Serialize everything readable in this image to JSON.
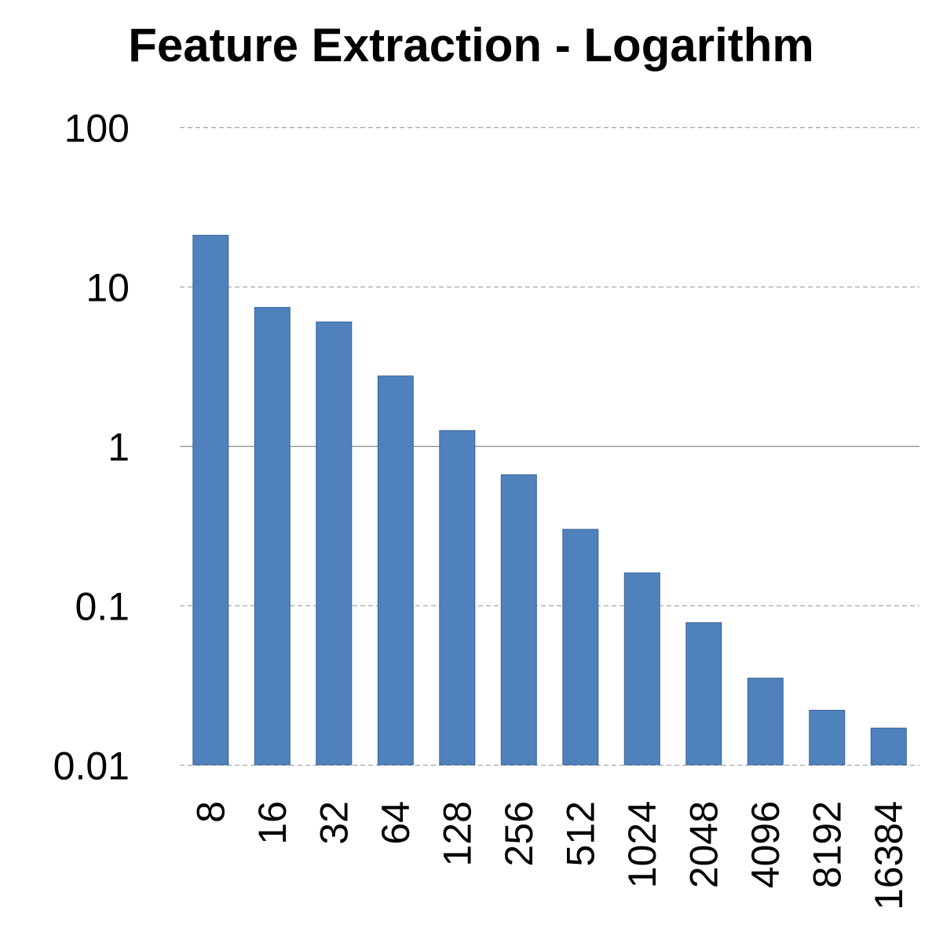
{
  "chart_data": {
    "type": "bar",
    "title": "Feature Extraction - Logarithm",
    "xlabel": "",
    "ylabel": "",
    "yscale": "log",
    "ylim": [
      0.01,
      100
    ],
    "yticks": [
      "100",
      "10",
      "1",
      "0.1",
      "0.01"
    ],
    "ytick_values": [
      100,
      10,
      1,
      0.1,
      0.01
    ],
    "grid": "horizontal dashed",
    "categories": [
      "8",
      "16",
      "32",
      "64",
      "128",
      "256",
      "512",
      "1024",
      "2048",
      "4096",
      "8192",
      "16384"
    ],
    "values": [
      21,
      7.4,
      6.0,
      2.75,
      1.25,
      0.66,
      0.3,
      0.16,
      0.078,
      0.035,
      0.022,
      0.017
    ],
    "bar_color": "#4f81bd",
    "bar_edge_color": "#3a6595",
    "axis_line_color": "#8c8c8c",
    "grid_color": "#a6a6a6"
  }
}
